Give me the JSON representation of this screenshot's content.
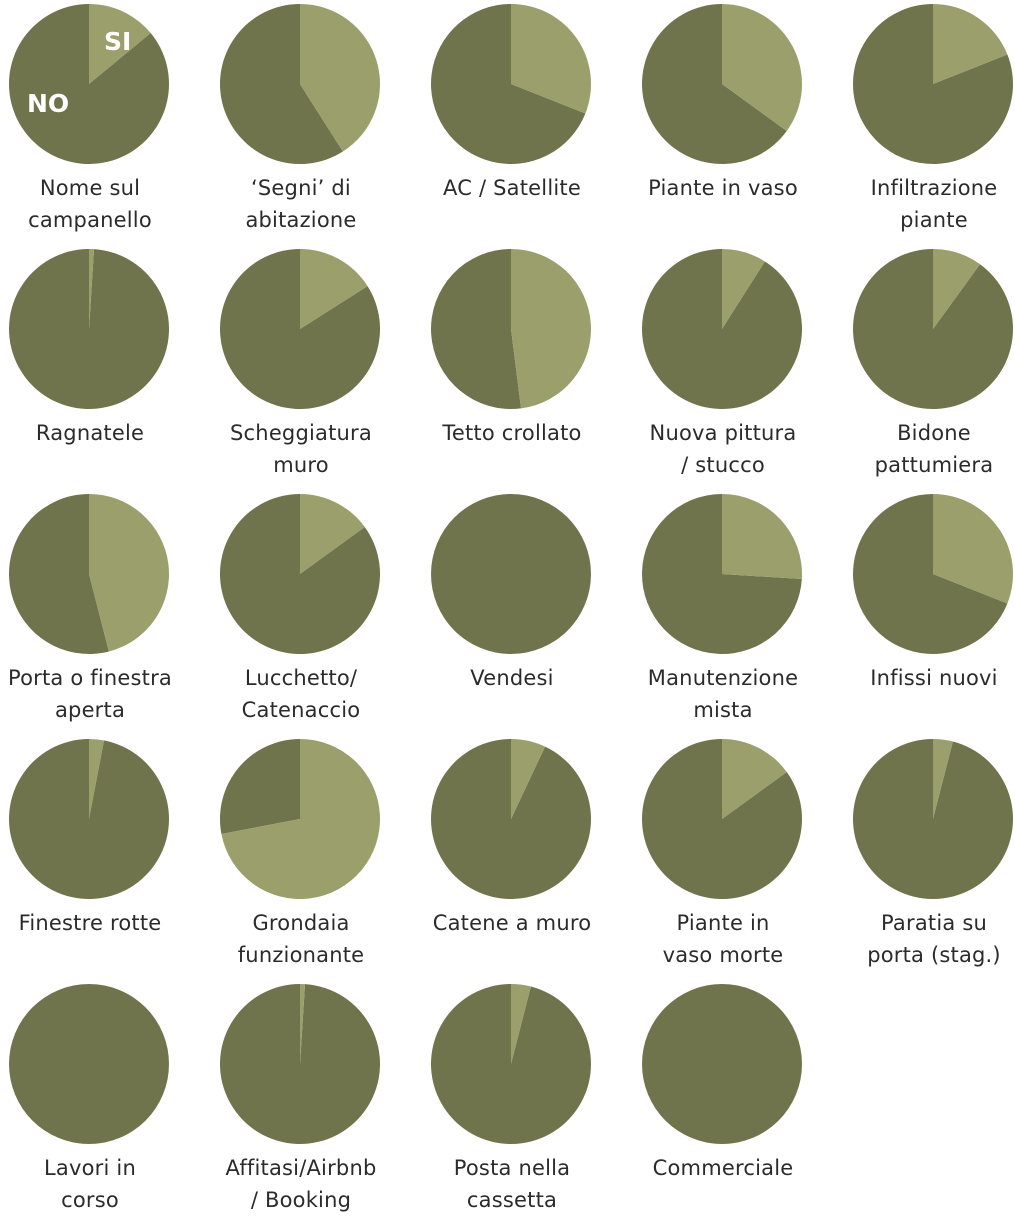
{
  "colors": {
    "si": "#9b9f6c",
    "no": "#6f744c"
  },
  "chart_data": {
    "type": "pie",
    "legend_inline": {
      "si_label": "SI",
      "no_label": "NO"
    },
    "charts": [
      {
        "label_lines": [
          "Nome sul",
          "campanello"
        ],
        "si": 0.14
      },
      {
        "label_lines": [
          "‘Segni’ di",
          "abitazione"
        ],
        "si": 0.41
      },
      {
        "label_lines": [
          "AC / Satellite"
        ],
        "si": 0.31
      },
      {
        "label_lines": [
          "Piante in vaso"
        ],
        "si": 0.35
      },
      {
        "label_lines": [
          "Infiltrazione",
          "piante"
        ],
        "si": 0.19
      },
      {
        "label_lines": [
          "Ragnatele"
        ],
        "si": 0.01
      },
      {
        "label_lines": [
          "Scheggiatura",
          "muro"
        ],
        "si": 0.16
      },
      {
        "label_lines": [
          "Tetto crollato"
        ],
        "si": 0.48
      },
      {
        "label_lines": [
          "Nuova pittura",
          "/ stucco"
        ],
        "si": 0.09
      },
      {
        "label_lines": [
          "Bidone",
          "pattumiera"
        ],
        "si": 0.1
      },
      {
        "label_lines": [
          "Porta o finestra",
          "aperta"
        ],
        "si": 0.46
      },
      {
        "label_lines": [
          "Lucchetto/",
          "Catenaccio"
        ],
        "si": 0.15
      },
      {
        "label_lines": [
          "Vendesi"
        ],
        "si": 0.0
      },
      {
        "label_lines": [
          "Manutenzione",
          "mista"
        ],
        "si": 0.26
      },
      {
        "label_lines": [
          "Infissi nuovi"
        ],
        "si": 0.31
      },
      {
        "label_lines": [
          "Finestre rotte"
        ],
        "si": 0.03
      },
      {
        "label_lines": [
          "Grondaia",
          "funzionante"
        ],
        "si": 0.72
      },
      {
        "label_lines": [
          "Catene a muro"
        ],
        "si": 0.07
      },
      {
        "label_lines": [
          "Piante in",
          "vaso morte"
        ],
        "si": 0.15
      },
      {
        "label_lines": [
          "Paratia su",
          "porta (stag.)"
        ],
        "si": 0.04
      },
      {
        "label_lines": [
          "Lavori in",
          "corso"
        ],
        "si": 0.0
      },
      {
        "label_lines": [
          "Affitasi/Airbnb",
          "/ Booking"
        ],
        "si": 0.01
      },
      {
        "label_lines": [
          "Posta nella",
          "cassetta"
        ],
        "si": 0.04
      },
      {
        "label_lines": [
          "Commerciale"
        ],
        "si": 0.0
      }
    ]
  }
}
